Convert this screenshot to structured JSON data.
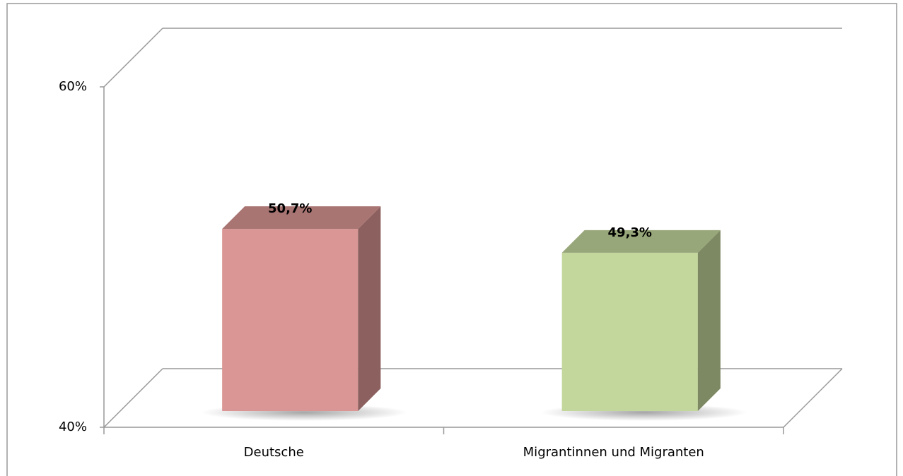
{
  "chart_data": {
    "type": "bar3d",
    "categories": [
      "Deutsche",
      "Migrantinnen und Migranten"
    ],
    "values": [
      50.7,
      49.3
    ],
    "value_labels": [
      "50,7%",
      "49,3%"
    ],
    "colors": [
      "#d99694",
      "#c3d69b"
    ],
    "ylim": [
      40,
      60
    ],
    "yticks": [
      {
        "value": 40,
        "label": "40%"
      },
      {
        "value": 60,
        "label": "60%"
      }
    ],
    "grid": true
  }
}
